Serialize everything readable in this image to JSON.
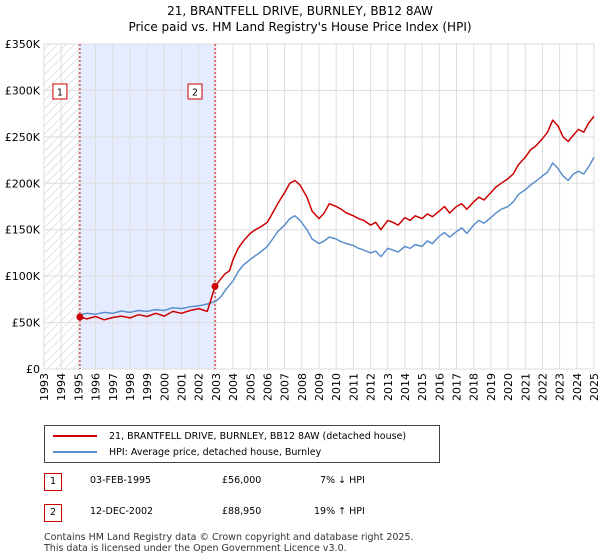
{
  "title": "21, BRANTFELL DRIVE, BURNLEY, BB12 8AW",
  "subtitle": "Price paid vs. HM Land Registry's House Price Index (HPI)",
  "colors": {
    "property": "#cc0000",
    "hpi": "#5b8fcc",
    "shade": "#e6ecff"
  },
  "chart_data": {
    "type": "line",
    "xlim": [
      1993,
      2025
    ],
    "ylim": [
      0,
      350000
    ],
    "y_ticks": [
      0,
      50000,
      100000,
      150000,
      200000,
      250000,
      300000,
      350000
    ],
    "y_tick_labels": [
      "£0",
      "£50K",
      "£100K",
      "£150K",
      "£200K",
      "£250K",
      "£300K",
      "£350K"
    ],
    "x_ticks": [
      "1993",
      "1994",
      "1995",
      "1996",
      "1997",
      "1998",
      "1999",
      "2000",
      "2001",
      "2002",
      "2003",
      "2004",
      "2005",
      "2006",
      "2007",
      "2008",
      "2009",
      "2010",
      "2011",
      "2012",
      "2013",
      "2014",
      "2015",
      "2016",
      "2017",
      "2018",
      "2019",
      "2020",
      "2021",
      "2022",
      "2023",
      "2024",
      "2025"
    ],
    "shaded_range": [
      1995.09,
      2002.95
    ],
    "hatched_range": [
      1993,
      1995.09
    ],
    "markers": [
      {
        "label": "1",
        "x": 1995.09,
        "y": 56000
      },
      {
        "label": "2",
        "x": 2002.95,
        "y": 88950
      }
    ],
    "series": [
      {
        "name": "21, BRANTFELL DRIVE, BURNLEY, BB12 8AW (detached house)",
        "color": "#cc0000",
        "points": [
          [
            1995.09,
            56000
          ],
          [
            1995.5,
            54000
          ],
          [
            1996,
            56500
          ],
          [
            1996.5,
            53000
          ],
          [
            1997,
            55500
          ],
          [
            1997.5,
            57000
          ],
          [
            1998,
            55000
          ],
          [
            1998.5,
            58500
          ],
          [
            1999,
            56500
          ],
          [
            1999.5,
            60000
          ],
          [
            2000,
            57000
          ],
          [
            2000.5,
            62000
          ],
          [
            2001,
            60000
          ],
          [
            2001.5,
            63000
          ],
          [
            2002,
            65000
          ],
          [
            2002.5,
            62000
          ],
          [
            2002.95,
            88950
          ],
          [
            2003.2,
            95000
          ],
          [
            2003.5,
            102000
          ],
          [
            2003.8,
            106000
          ],
          [
            2004,
            118000
          ],
          [
            2004.3,
            130000
          ],
          [
            2004.6,
            138000
          ],
          [
            2005,
            146000
          ],
          [
            2005.3,
            150000
          ],
          [
            2005.6,
            153000
          ],
          [
            2006,
            158000
          ],
          [
            2006.3,
            168000
          ],
          [
            2006.6,
            178000
          ],
          [
            2007,
            190000
          ],
          [
            2007.3,
            200000
          ],
          [
            2007.6,
            203000
          ],
          [
            2007.9,
            198000
          ],
          [
            2008.3,
            185000
          ],
          [
            2008.6,
            170000
          ],
          [
            2009,
            162000
          ],
          [
            2009.3,
            168000
          ],
          [
            2009.6,
            178000
          ],
          [
            2010,
            175000
          ],
          [
            2010.3,
            172000
          ],
          [
            2010.6,
            168000
          ],
          [
            2011,
            165000
          ],
          [
            2011.3,
            162000
          ],
          [
            2011.6,
            160000
          ],
          [
            2012,
            155000
          ],
          [
            2012.3,
            158000
          ],
          [
            2012.6,
            150000
          ],
          [
            2013,
            160000
          ],
          [
            2013.3,
            158000
          ],
          [
            2013.6,
            155000
          ],
          [
            2014,
            163000
          ],
          [
            2014.3,
            160000
          ],
          [
            2014.6,
            165000
          ],
          [
            2015,
            162000
          ],
          [
            2015.3,
            167000
          ],
          [
            2015.6,
            164000
          ],
          [
            2016,
            170000
          ],
          [
            2016.3,
            175000
          ],
          [
            2016.6,
            168000
          ],
          [
            2017,
            175000
          ],
          [
            2017.3,
            178000
          ],
          [
            2017.6,
            172000
          ],
          [
            2018,
            180000
          ],
          [
            2018.3,
            185000
          ],
          [
            2018.6,
            182000
          ],
          [
            2019,
            190000
          ],
          [
            2019.3,
            196000
          ],
          [
            2019.6,
            200000
          ],
          [
            2020,
            205000
          ],
          [
            2020.3,
            210000
          ],
          [
            2020.6,
            220000
          ],
          [
            2021,
            228000
          ],
          [
            2021.3,
            236000
          ],
          [
            2021.6,
            240000
          ],
          [
            2022,
            248000
          ],
          [
            2022.3,
            255000
          ],
          [
            2022.6,
            268000
          ],
          [
            2022.9,
            262000
          ],
          [
            2023.2,
            250000
          ],
          [
            2023.5,
            245000
          ],
          [
            2023.8,
            252000
          ],
          [
            2024.1,
            258000
          ],
          [
            2024.4,
            255000
          ],
          [
            2024.7,
            265000
          ],
          [
            2025,
            272000
          ]
        ]
      },
      {
        "name": "HPI: Average price, detached house, Burnley",
        "color": "#5b8fcc",
        "points": [
          [
            1995,
            58000
          ],
          [
            1995.5,
            60000
          ],
          [
            1996,
            59000
          ],
          [
            1996.5,
            61000
          ],
          [
            1997,
            60000
          ],
          [
            1997.5,
            62500
          ],
          [
            1998,
            61000
          ],
          [
            1998.5,
            63000
          ],
          [
            1999,
            62000
          ],
          [
            1999.5,
            64000
          ],
          [
            2000,
            63000
          ],
          [
            2000.5,
            66000
          ],
          [
            2001,
            65000
          ],
          [
            2001.5,
            67000
          ],
          [
            2002,
            68000
          ],
          [
            2002.5,
            70000
          ],
          [
            2003,
            73000
          ],
          [
            2003.3,
            78000
          ],
          [
            2003.6,
            86000
          ],
          [
            2004,
            95000
          ],
          [
            2004.3,
            105000
          ],
          [
            2004.6,
            112000
          ],
          [
            2005,
            118000
          ],
          [
            2005.3,
            122000
          ],
          [
            2005.6,
            126000
          ],
          [
            2006,
            132000
          ],
          [
            2006.3,
            140000
          ],
          [
            2006.6,
            148000
          ],
          [
            2007,
            155000
          ],
          [
            2007.3,
            162000
          ],
          [
            2007.6,
            165000
          ],
          [
            2007.9,
            160000
          ],
          [
            2008.3,
            150000
          ],
          [
            2008.6,
            140000
          ],
          [
            2009,
            135000
          ],
          [
            2009.3,
            138000
          ],
          [
            2009.6,
            142000
          ],
          [
            2010,
            140000
          ],
          [
            2010.3,
            137000
          ],
          [
            2010.6,
            135000
          ],
          [
            2011,
            133000
          ],
          [
            2011.3,
            130000
          ],
          [
            2011.6,
            128000
          ],
          [
            2012,
            125000
          ],
          [
            2012.3,
            127000
          ],
          [
            2012.6,
            121000
          ],
          [
            2013,
            130000
          ],
          [
            2013.3,
            128000
          ],
          [
            2013.6,
            126000
          ],
          [
            2014,
            132000
          ],
          [
            2014.3,
            130000
          ],
          [
            2014.6,
            134000
          ],
          [
            2015,
            132000
          ],
          [
            2015.3,
            138000
          ],
          [
            2015.6,
            135000
          ],
          [
            2016,
            143000
          ],
          [
            2016.3,
            147000
          ],
          [
            2016.6,
            142000
          ],
          [
            2017,
            148000
          ],
          [
            2017.3,
            152000
          ],
          [
            2017.6,
            146000
          ],
          [
            2018,
            155000
          ],
          [
            2018.3,
            160000
          ],
          [
            2018.6,
            157000
          ],
          [
            2019,
            163000
          ],
          [
            2019.3,
            168000
          ],
          [
            2019.6,
            172000
          ],
          [
            2020,
            175000
          ],
          [
            2020.3,
            180000
          ],
          [
            2020.6,
            188000
          ],
          [
            2021,
            193000
          ],
          [
            2021.3,
            198000
          ],
          [
            2021.6,
            202000
          ],
          [
            2022,
            208000
          ],
          [
            2022.3,
            212000
          ],
          [
            2022.6,
            222000
          ],
          [
            2022.9,
            216000
          ],
          [
            2023.2,
            208000
          ],
          [
            2023.5,
            203000
          ],
          [
            2023.8,
            210000
          ],
          [
            2024.1,
            213000
          ],
          [
            2024.4,
            210000
          ],
          [
            2024.7,
            218000
          ],
          [
            2025,
            228000
          ]
        ]
      }
    ]
  },
  "legend": {
    "property_label": "21, BRANTFELL DRIVE, BURNLEY, BB12 8AW (detached house)",
    "hpi_label": "HPI: Average price, detached house, Burnley"
  },
  "transactions": [
    {
      "badge": "1",
      "date": "03-FEB-1995",
      "price": "£56,000",
      "delta": "7% ↓ HPI"
    },
    {
      "badge": "2",
      "date": "12-DEC-2002",
      "price": "£88,950",
      "delta": "19% ↑ HPI"
    }
  ],
  "footer": {
    "line1": "Contains HM Land Registry data © Crown copyright and database right 2025.",
    "line2": "This data is licensed under the Open Government Licence v3.0."
  }
}
